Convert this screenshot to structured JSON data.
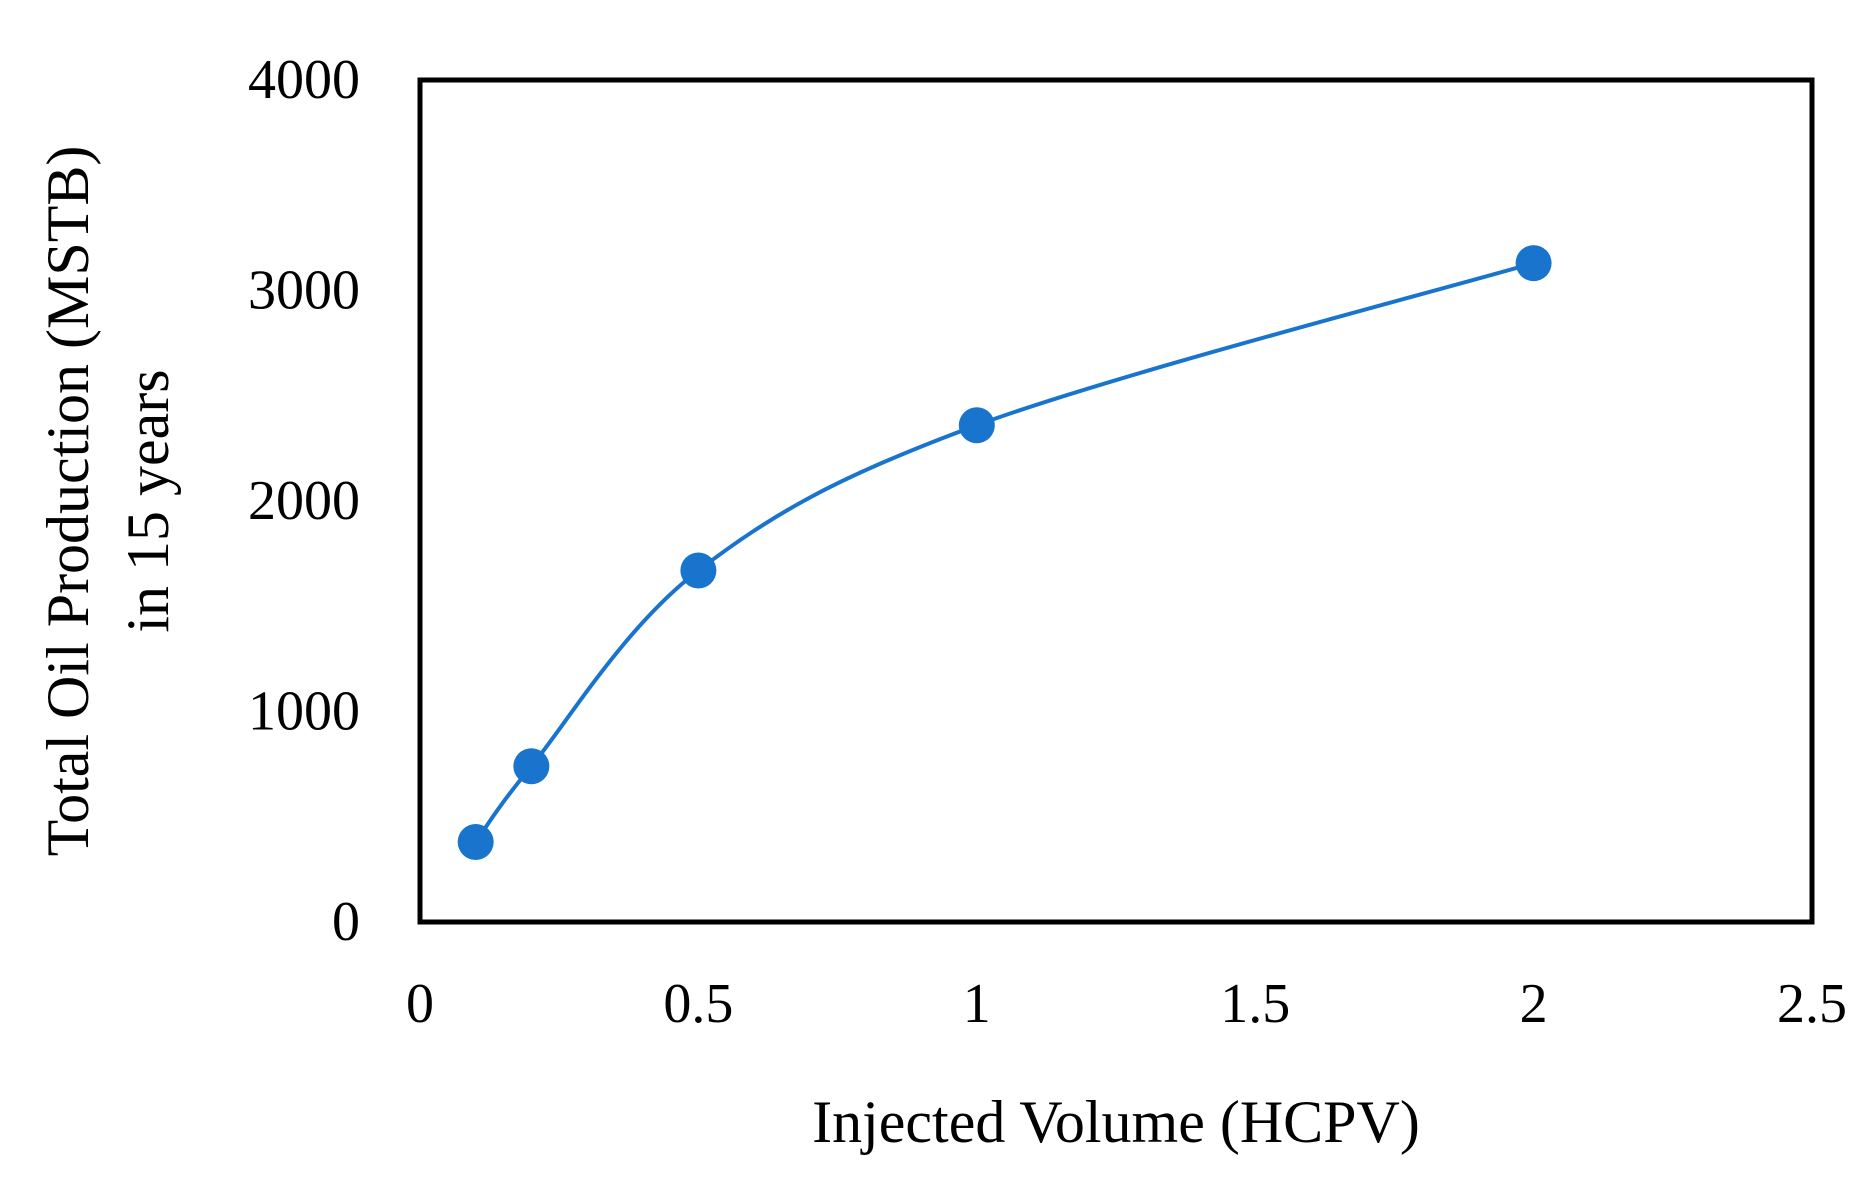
{
  "chart_data": {
    "type": "scatter",
    "title": "",
    "xlabel": "Injected Volume (HCPV)",
    "ylabel_lines": [
      "Total Oil Production (MSTB)",
      "in 15 years"
    ],
    "xlim": [
      0,
      2.5
    ],
    "ylim": [
      0,
      4000
    ],
    "x_ticks": [
      0,
      0.5,
      1,
      1.5,
      2,
      2.5
    ],
    "x_tick_labels": [
      "0",
      "0.5",
      "1",
      "1.5",
      "2",
      "2.5"
    ],
    "y_ticks": [
      0,
      1000,
      2000,
      3000,
      4000
    ],
    "y_tick_labels": [
      "0",
      "1000",
      "2000",
      "3000",
      "4000"
    ],
    "grid": false,
    "legend": "none",
    "series": [
      {
        "name": "Total Oil Production",
        "x": [
          0.1,
          0.2,
          0.5,
          1.0,
          2.0
        ],
        "y": [
          380,
          740,
          1670,
          2360,
          3130
        ],
        "smooth": true,
        "color": "#1874CD",
        "marker_color": "#1874CD"
      }
    ]
  }
}
